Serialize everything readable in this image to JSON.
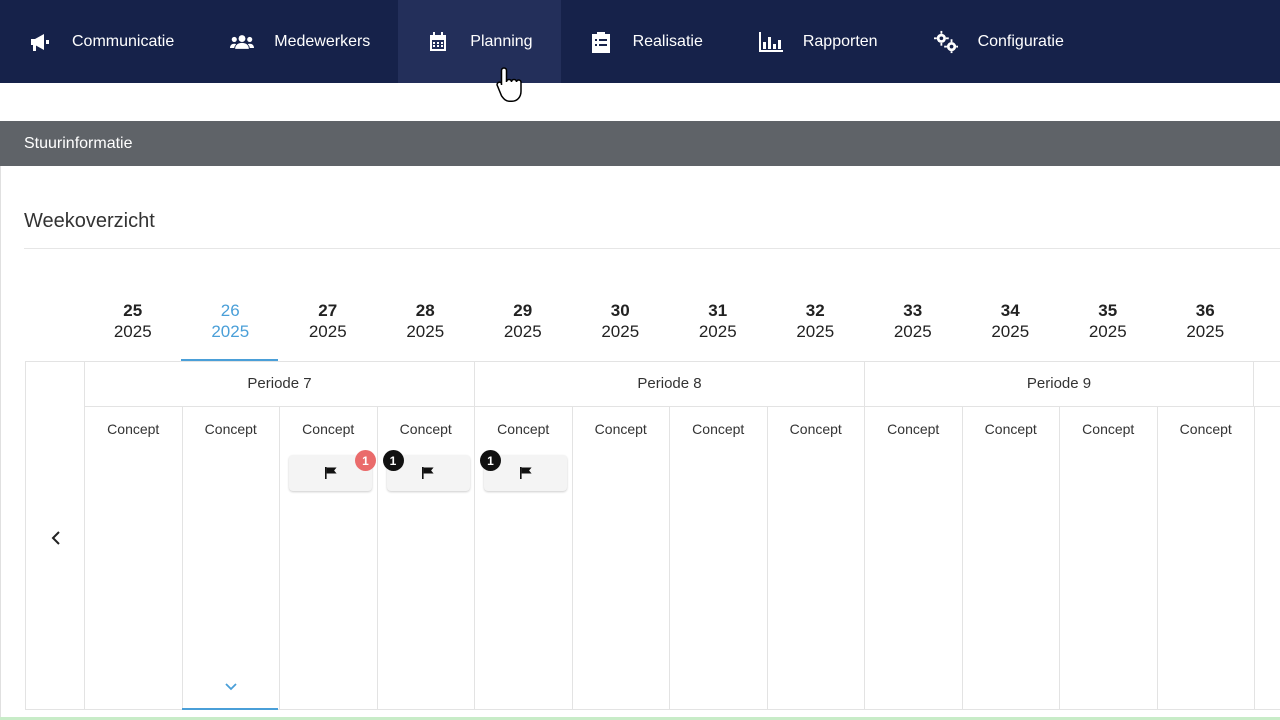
{
  "nav": {
    "items": [
      {
        "label": "Communicatie",
        "icon": "megaphone-icon"
      },
      {
        "label": "Medewerkers",
        "icon": "users-icon"
      },
      {
        "label": "Planning",
        "icon": "calendar-icon"
      },
      {
        "label": "Realisatie",
        "icon": "clipboard-icon"
      },
      {
        "label": "Rapporten",
        "icon": "bar-chart-icon"
      },
      {
        "label": "Configuratie",
        "icon": "gears-icon"
      }
    ],
    "active": "Planning"
  },
  "section_bar": {
    "title": "Stuurinformatie"
  },
  "overview": {
    "title": "Weekoverzicht"
  },
  "weeks": [
    {
      "week": "25",
      "year": "2025"
    },
    {
      "week": "26",
      "year": "2025"
    },
    {
      "week": "27",
      "year": "2025"
    },
    {
      "week": "28",
      "year": "2025"
    },
    {
      "week": "29",
      "year": "2025"
    },
    {
      "week": "30",
      "year": "2025"
    },
    {
      "week": "31",
      "year": "2025"
    },
    {
      "week": "32",
      "year": "2025"
    },
    {
      "week": "33",
      "year": "2025"
    },
    {
      "week": "34",
      "year": "2025"
    },
    {
      "week": "35",
      "year": "2025"
    },
    {
      "week": "36",
      "year": "2025"
    }
  ],
  "active_week": "26",
  "periods": [
    {
      "label": "Periode 7"
    },
    {
      "label": "Periode 8"
    },
    {
      "label": "Periode 9"
    }
  ],
  "columns": [
    {
      "status": "Concept"
    },
    {
      "status": "Concept"
    },
    {
      "status": "Concept",
      "flag": {
        "badge": "1",
        "badge_color": "#ea6b6b",
        "badge_side": "right"
      }
    },
    {
      "status": "Concept",
      "flag": {
        "badge": "1",
        "badge_color": "#111111",
        "badge_side": "left"
      }
    },
    {
      "status": "Concept",
      "flag": {
        "badge": "1",
        "badge_color": "#111111",
        "badge_side": "left"
      }
    },
    {
      "status": "Concept"
    },
    {
      "status": "Concept"
    },
    {
      "status": "Concept"
    },
    {
      "status": "Concept"
    },
    {
      "status": "Concept"
    },
    {
      "status": "Concept"
    },
    {
      "status": "Concept"
    }
  ],
  "colors": {
    "nav_bg": "#16224a",
    "accent": "#4a9fd8",
    "section_bar": "#5f6368"
  }
}
